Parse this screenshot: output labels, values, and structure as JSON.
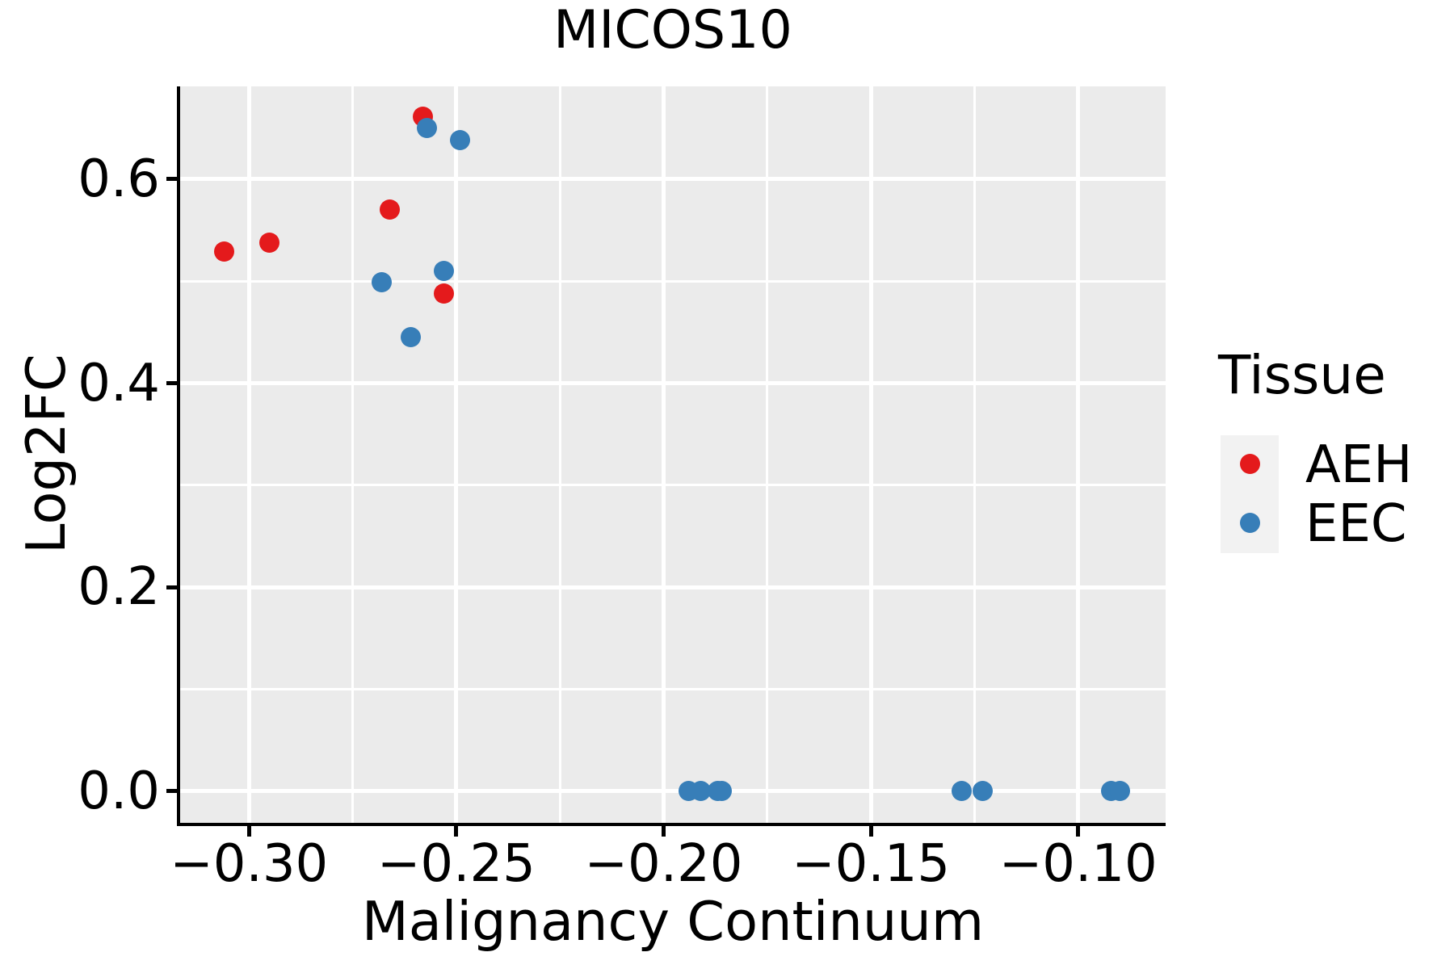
{
  "chart_data": {
    "type": "scatter",
    "title": "MICOS10",
    "xlabel": "Malignancy Continuum",
    "ylabel": "Log2FC",
    "xlim": [
      -0.3166,
      -0.0789
    ],
    "ylim": [
      -0.031,
      0.691
    ],
    "grid": true,
    "panel_background": "#ebebeb",
    "gridline_color": "#ffffff",
    "x_major_ticks": [
      -0.3,
      -0.25,
      -0.2,
      -0.15,
      -0.1
    ],
    "x_minor_ticks": [
      -0.275,
      -0.225,
      -0.175,
      -0.125
    ],
    "x_tick_labels": [
      "−0.30",
      "−0.25",
      "−0.20",
      "−0.15",
      "−0.10"
    ],
    "y_major_ticks": [
      0.0,
      0.2,
      0.4,
      0.6
    ],
    "y_minor_ticks": [
      0.1,
      0.3,
      0.5
    ],
    "y_tick_labels": [
      "0.0",
      "0.2",
      "0.4",
      "0.6"
    ],
    "legend_position": "right",
    "legend": {
      "title": "Tissue",
      "entries": [
        {
          "label": "AEH",
          "color": "#e41a1c"
        },
        {
          "label": "EEC",
          "color": "#377eb8"
        }
      ]
    },
    "series": [
      {
        "name": "AEH",
        "color": "#e41a1c",
        "points": [
          [
            -0.306,
            0.529
          ],
          [
            -0.295,
            0.538
          ],
          [
            -0.266,
            0.57
          ],
          [
            -0.258,
            0.661
          ],
          [
            -0.253,
            0.488
          ]
        ]
      },
      {
        "name": "EEC",
        "color": "#377eb8",
        "points": [
          [
            -0.257,
            0.65
          ],
          [
            -0.249,
            0.638
          ],
          [
            -0.268,
            0.499
          ],
          [
            -0.253,
            0.51
          ],
          [
            -0.261,
            0.445
          ],
          [
            -0.194,
            0.0
          ],
          [
            -0.191,
            0.0
          ],
          [
            -0.187,
            0.0
          ],
          [
            -0.186,
            0.0
          ],
          [
            -0.128,
            0.0
          ],
          [
            -0.123,
            0.0
          ],
          [
            -0.092,
            0.0
          ],
          [
            -0.09,
            0.0
          ]
        ]
      }
    ]
  }
}
